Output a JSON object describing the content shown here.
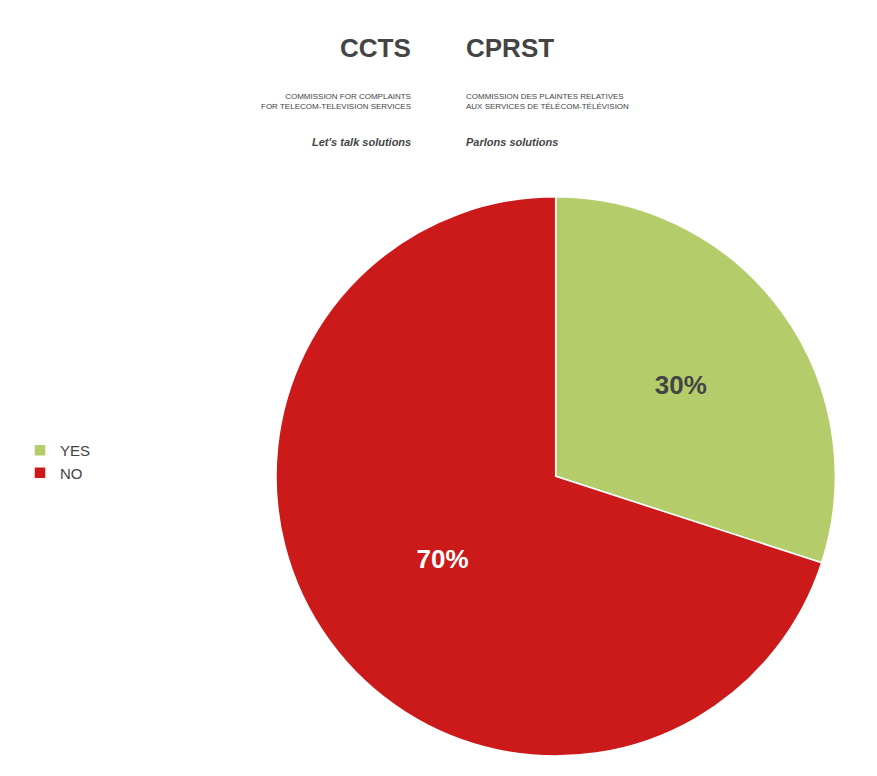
{
  "chart_data": {
    "type": "pie",
    "categories": [
      "YES",
      "NO"
    ],
    "values": [
      30,
      70
    ],
    "value_labels": [
      "30%",
      "70%"
    ],
    "data_labels": true,
    "colors": [
      "#b5cc6a",
      "#cc1a1a"
    ],
    "legend": "left",
    "annotations": [
      "CCTS",
      "COMMISSION FOR COMPLAINTS\nFOR TELECOM-TELEVISION SERVICES",
      "Let's talk solutions",
      "CPRST",
      "COMMISSION DES PLAINTES RELATIVES\nAUX SERVICES DE TÉLÉCOM-TÉLÉVISION",
      "Parlons solutions"
    ]
  }
}
